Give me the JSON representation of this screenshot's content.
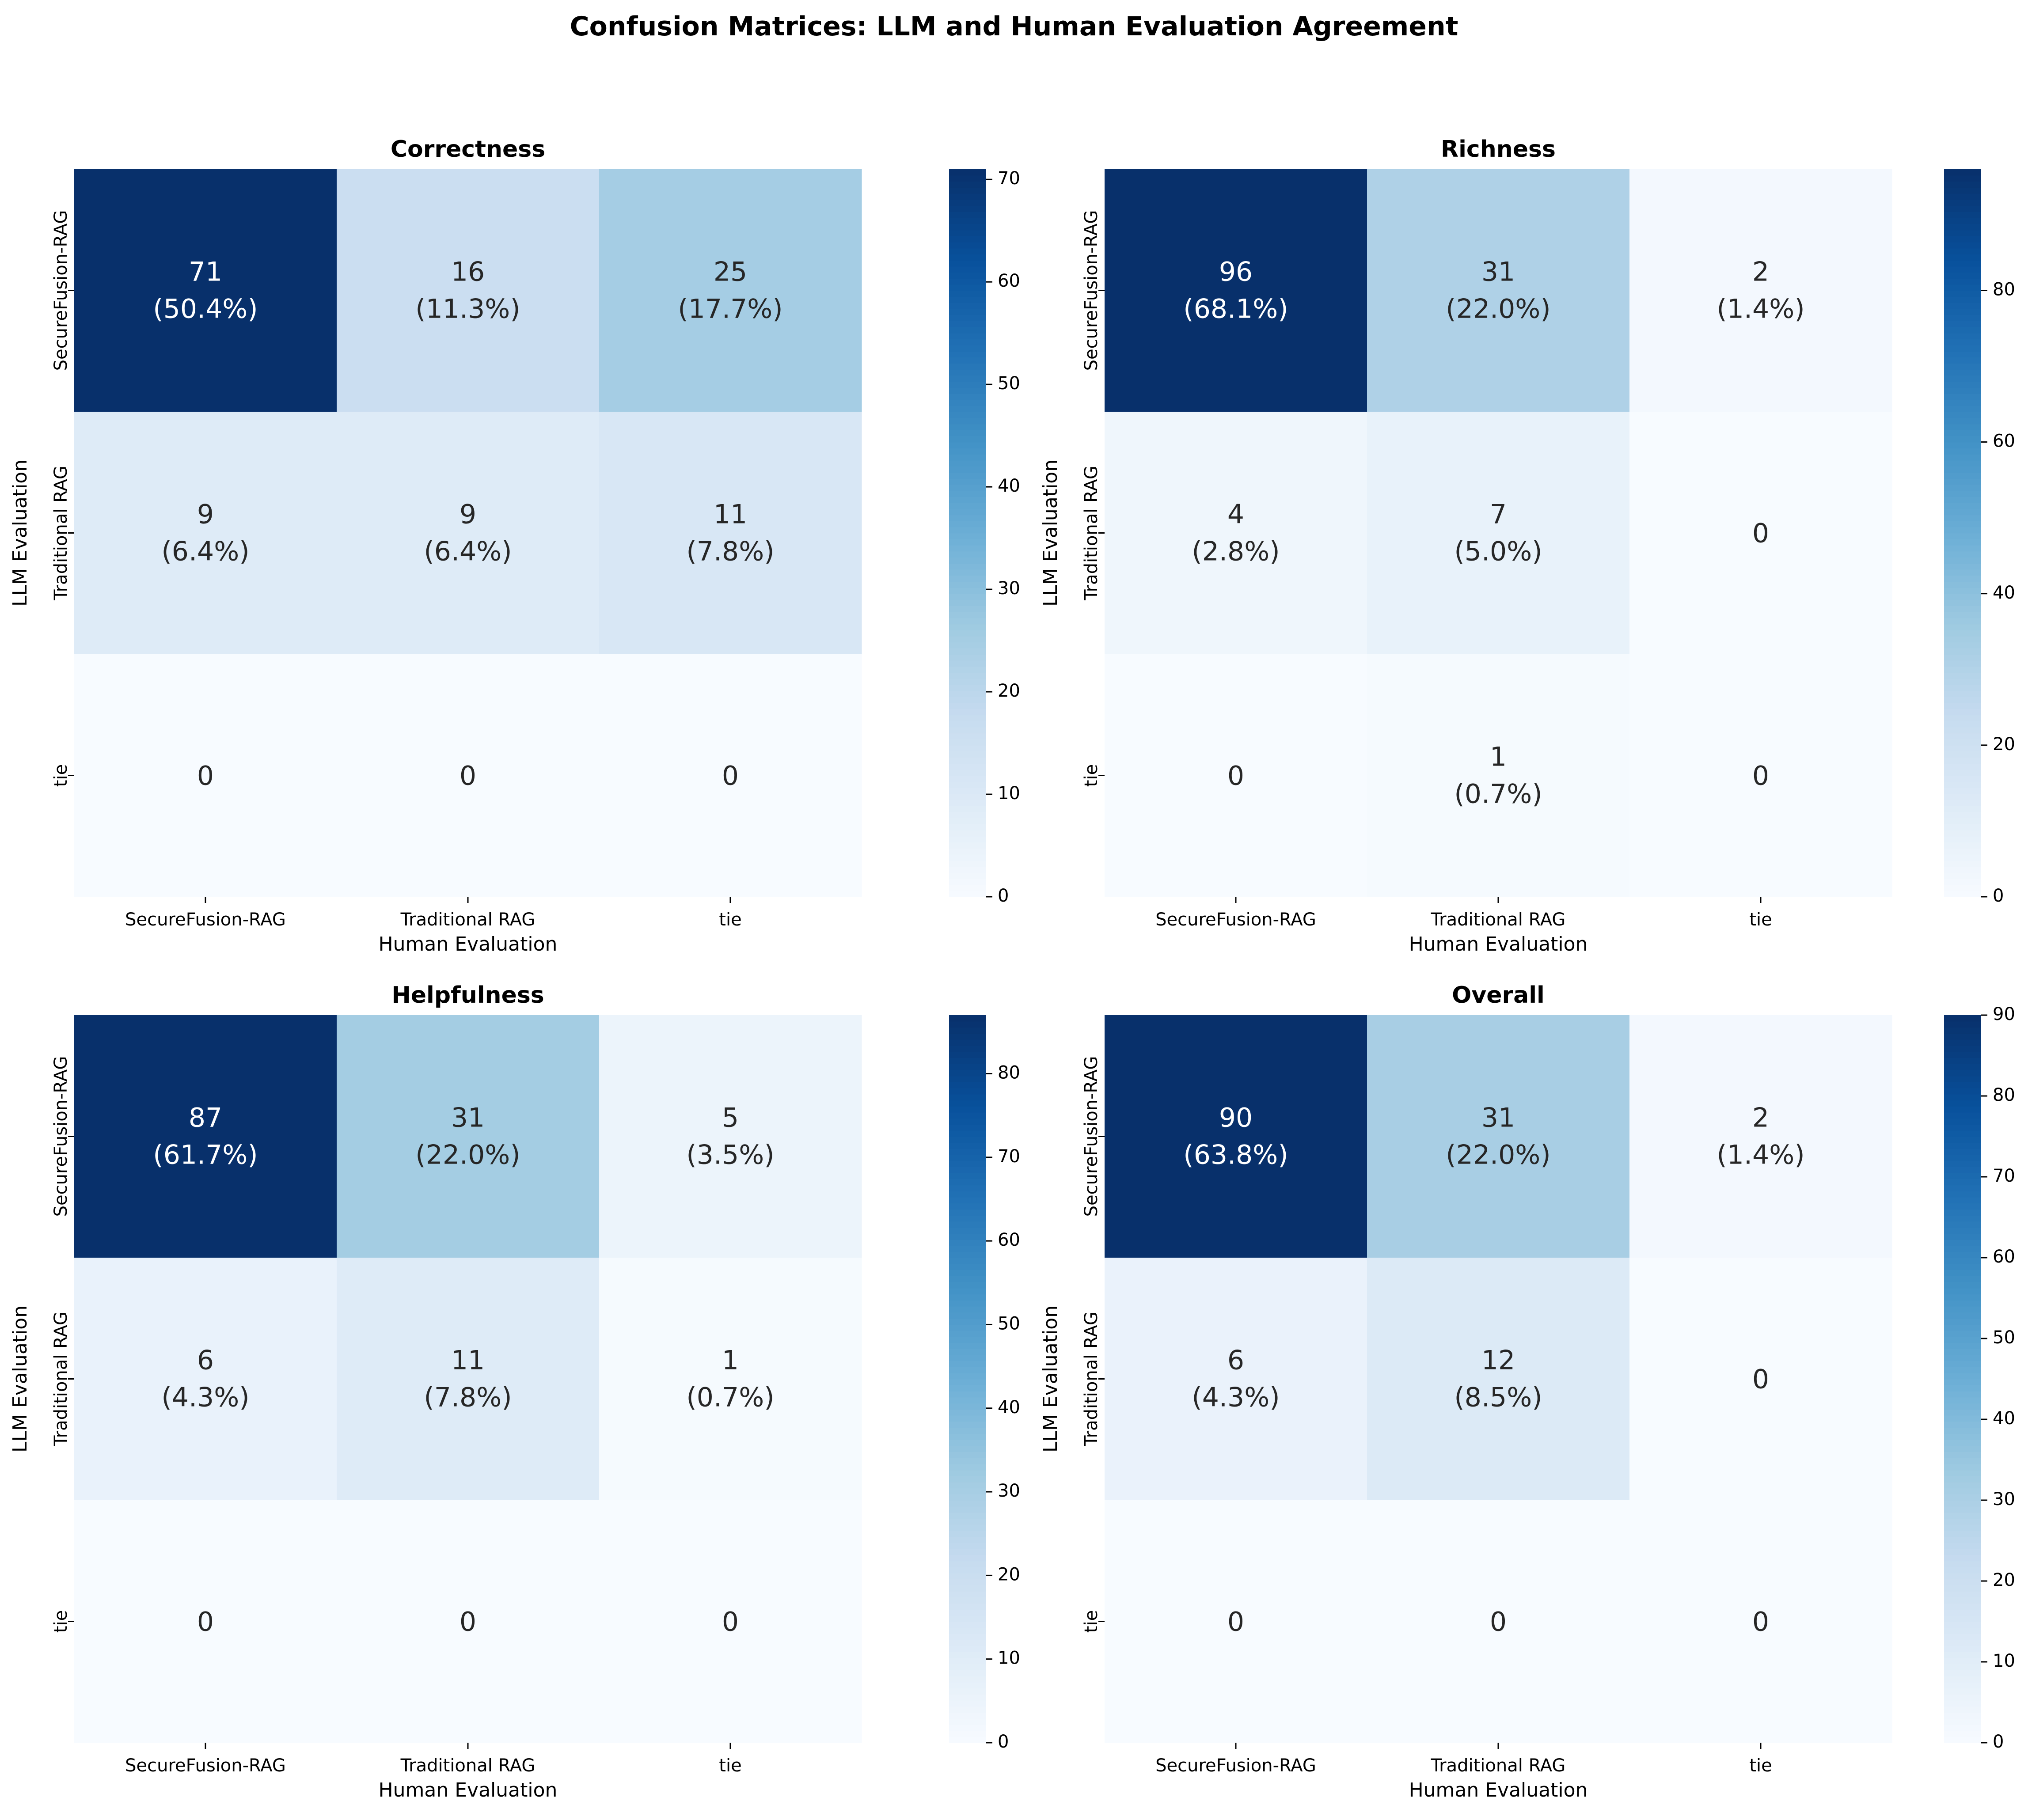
{
  "chart_data": {
    "title": "Confusion Matrices: LLM and Human Evaluation Agreement",
    "panels": [
      {
        "type": "heatmap",
        "title": "Correctness",
        "xlabel": "Human Evaluation",
        "ylabel": "LLM Evaluation",
        "x_categories": [
          "SecureFusion-RAG",
          "Traditional RAG",
          "tie"
        ],
        "y_categories": [
          "SecureFusion-RAG",
          "Traditional RAG",
          "tie"
        ],
        "matrix": [
          [
            71,
            16,
            25
          ],
          [
            9,
            9,
            11
          ],
          [
            0,
            0,
            0
          ]
        ],
        "percent_labels": [
          [
            "(50.4%)",
            "(11.3%)",
            "(17.7%)"
          ],
          [
            "(6.4%)",
            "(6.4%)",
            "(7.8%)"
          ],
          [
            "",
            "",
            ""
          ]
        ],
        "colorbar": {
          "colormap": "Blues",
          "min": 0,
          "max": 71,
          "ticks": [
            0,
            10,
            20,
            30,
            40,
            50,
            60,
            70
          ]
        }
      },
      {
        "type": "heatmap",
        "title": "Richness",
        "xlabel": "Human Evaluation",
        "ylabel": "LLM Evaluation",
        "x_categories": [
          "SecureFusion-RAG",
          "Traditional RAG",
          "tie"
        ],
        "y_categories": [
          "SecureFusion-RAG",
          "Traditional RAG",
          "tie"
        ],
        "matrix": [
          [
            96,
            31,
            2
          ],
          [
            4,
            7,
            0
          ],
          [
            0,
            1,
            0
          ]
        ],
        "percent_labels": [
          [
            "(68.1%)",
            "(22.0%)",
            "(1.4%)"
          ],
          [
            "(2.8%)",
            "(5.0%)",
            ""
          ],
          [
            "",
            "(0.7%)",
            ""
          ]
        ],
        "colorbar": {
          "colormap": "Blues",
          "min": 0,
          "max": 96,
          "ticks": [
            0,
            20,
            40,
            60,
            80
          ]
        }
      },
      {
        "type": "heatmap",
        "title": "Helpfulness",
        "xlabel": "Human Evaluation",
        "ylabel": "LLM Evaluation",
        "x_categories": [
          "SecureFusion-RAG",
          "Traditional RAG",
          "tie"
        ],
        "y_categories": [
          "SecureFusion-RAG",
          "Traditional RAG",
          "tie"
        ],
        "matrix": [
          [
            87,
            31,
            5
          ],
          [
            6,
            11,
            1
          ],
          [
            0,
            0,
            0
          ]
        ],
        "percent_labels": [
          [
            "(61.7%)",
            "(22.0%)",
            "(3.5%)"
          ],
          [
            "(4.3%)",
            "(7.8%)",
            "(0.7%)"
          ],
          [
            "",
            "",
            ""
          ]
        ],
        "colorbar": {
          "colormap": "Blues",
          "min": 0,
          "max": 87,
          "ticks": [
            0,
            10,
            20,
            30,
            40,
            50,
            60,
            70,
            80
          ]
        }
      },
      {
        "type": "heatmap",
        "title": "Overall",
        "xlabel": "Human Evaluation",
        "ylabel": "LLM Evaluation",
        "x_categories": [
          "SecureFusion-RAG",
          "Traditional RAG",
          "tie"
        ],
        "y_categories": [
          "SecureFusion-RAG",
          "Traditional RAG",
          "tie"
        ],
        "matrix": [
          [
            90,
            31,
            2
          ],
          [
            6,
            12,
            0
          ],
          [
            0,
            0,
            0
          ]
        ],
        "percent_labels": [
          [
            "(63.8%)",
            "(22.0%)",
            "(1.4%)"
          ],
          [
            "(4.3%)",
            "(8.5%)",
            ""
          ],
          [
            "",
            "",
            ""
          ]
        ],
        "colorbar": {
          "colormap": "Blues",
          "min": 0,
          "max": 90,
          "ticks": [
            0,
            10,
            20,
            30,
            40,
            50,
            60,
            70,
            80,
            90
          ]
        }
      }
    ]
  }
}
